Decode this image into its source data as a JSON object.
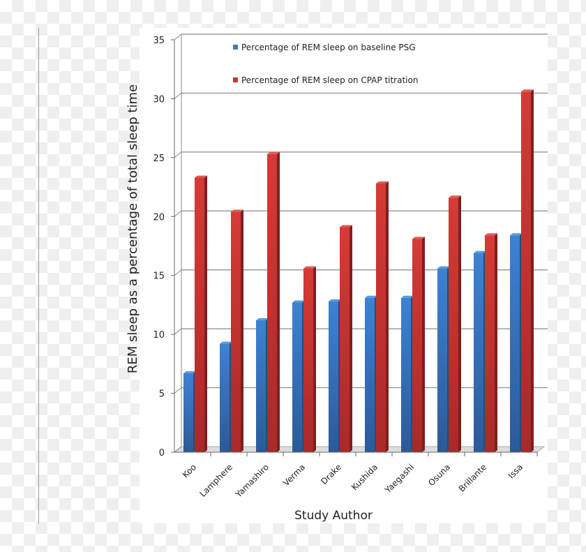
{
  "chart_data": {
    "type": "bar",
    "style": "3d-clustered",
    "xlabel": "Study Author",
    "ylabel": "REM sleep as a percentage of total sleep time",
    "ylim": [
      0,
      35
    ],
    "yticks": [
      0,
      5,
      10,
      15,
      20,
      25,
      30,
      35
    ],
    "grid": true,
    "legend_position": "top-center",
    "categories": [
      "Koo",
      "Lamphere",
      "Yamashiro",
      "Verma",
      "Drake",
      "Kushida",
      "Yaegashi",
      "Osuna",
      "Brillante",
      "Issa"
    ],
    "series": [
      {
        "name": "Percentage of REM sleep on baseline PSG",
        "color": "#3a78c8",
        "values": [
          6.7,
          9.2,
          11.2,
          12.7,
          12.8,
          13.1,
          13.1,
          15.6,
          16.9,
          18.4
        ]
      },
      {
        "name": "Percentage of REM sleep on CPAP titration",
        "color": "#cc3333",
        "values": [
          23.3,
          20.4,
          25.3,
          15.6,
          19.1,
          22.8,
          18.1,
          21.6,
          18.4,
          30.6
        ]
      }
    ]
  }
}
